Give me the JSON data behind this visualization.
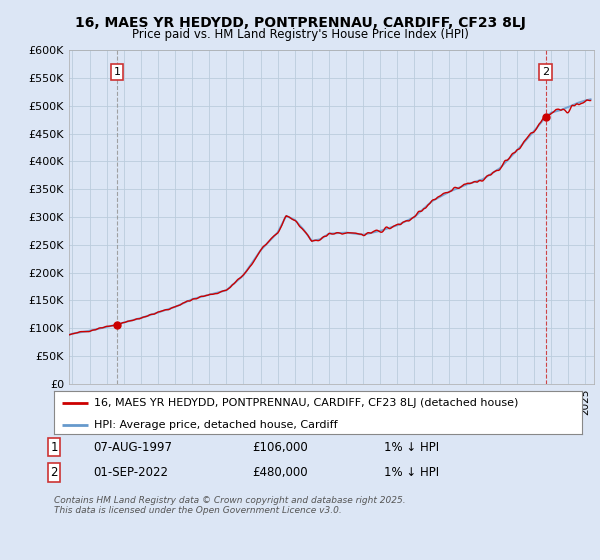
{
  "title_line1": "16, MAES YR HEDYDD, PONTPRENNAU, CARDIFF, CF23 8LJ",
  "title_line2": "Price paid vs. HM Land Registry's House Price Index (HPI)",
  "background_color": "#dce6f5",
  "plot_bg_color": "#dce6f5",
  "legend_label1": "16, MAES YR HEDYDD, PONTPRENNAU, CARDIFF, CF23 8LJ (detached house)",
  "legend_label2": "HPI: Average price, detached house, Cardiff",
  "annotation1_date": "07-AUG-1997",
  "annotation1_price": "£106,000",
  "annotation1_hpi": "1% ↓ HPI",
  "annotation2_date": "01-SEP-2022",
  "annotation2_price": "£480,000",
  "annotation2_hpi": "1% ↓ HPI",
  "footer": "Contains HM Land Registry data © Crown copyright and database right 2025.\nThis data is licensed under the Open Government Licence v3.0.",
  "purchase1_x": 1997.6,
  "purchase1_y": 106000,
  "purchase2_x": 2022.67,
  "purchase2_y": 480000,
  "ylim": [
    0,
    600000
  ],
  "xlim_start": 1994.8,
  "xlim_end": 2025.5,
  "hpi_color": "#6699cc",
  "price_color": "#cc0000",
  "grid_color": "#bbccdd",
  "annotation_box_color": "#cc3333",
  "vline1_color": "#999999",
  "vline2_color": "#cc3333"
}
